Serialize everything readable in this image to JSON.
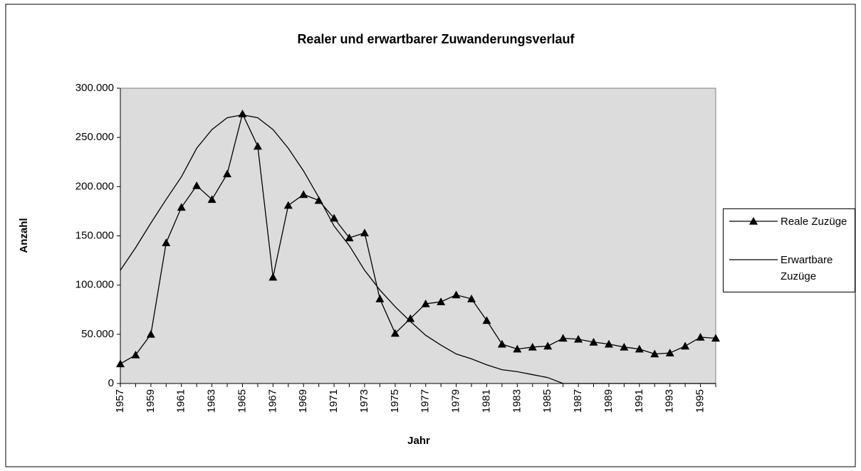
{
  "chart_data": {
    "type": "line",
    "title": "Realer und erwartbarer Zuwanderungsverlauf",
    "x_label": "Jahr",
    "y_label": "Anzahl",
    "categories": [
      "1957",
      null,
      "1959",
      null,
      "1961",
      null,
      "1963",
      null,
      "1965",
      null,
      "1967",
      null,
      "1969",
      null,
      "1971",
      null,
      "1973",
      null,
      "1975",
      null,
      "1977",
      null,
      "1979",
      null,
      "1981",
      null,
      "1983",
      null,
      "1985",
      null,
      "1987",
      null,
      "1989",
      null,
      "1991",
      null,
      "1993",
      null,
      "1995",
      null
    ],
    "series": [
      {
        "name": "Reale Zuzüge",
        "color": "#000000",
        "marker": "triangle",
        "values": [
          20000,
          29000,
          50000,
          143000,
          179000,
          201000,
          187000,
          213000,
          274000,
          241000,
          108000,
          181000,
          192000,
          186000,
          168000,
          148000,
          153000,
          86000,
          51000,
          66000,
          81000,
          83000,
          90000,
          86000,
          64000,
          40000,
          35000,
          37000,
          38000,
          46000,
          45000,
          42000,
          40000,
          37000,
          35000,
          30000,
          31000,
          38000,
          47000,
          46000
        ]
      },
      {
        "name": "Erwartbare Zuzüge",
        "color": "#000000",
        "values": [
          115000,
          138000,
          163000,
          187000,
          210000,
          239000,
          258000,
          270000,
          273000,
          270000,
          258000,
          239000,
          216000,
          189000,
          160000,
          140000,
          115000,
          95000,
          78000,
          63000,
          49000,
          39000,
          30000,
          25000,
          19000,
          14000,
          12000,
          9000,
          6000,
          0,
          0,
          0,
          0,
          0,
          0,
          0,
          0,
          0,
          0,
          0
        ]
      }
    ],
    "ylim": [
      0,
      300000
    ],
    "yticks": [
      0,
      {
        "value": 50000,
        "label": "50.000"
      },
      {
        "value": 100000,
        "label": "100.000"
      },
      {
        "value": 150000,
        "label": "150.000"
      },
      {
        "value": 200000,
        "label": "200.000"
      },
      {
        "value": 250000,
        "label": "250.000"
      },
      {
        "value": 300000,
        "label": "300.000"
      }
    ],
    "plot_background": "#dcdcdc"
  }
}
